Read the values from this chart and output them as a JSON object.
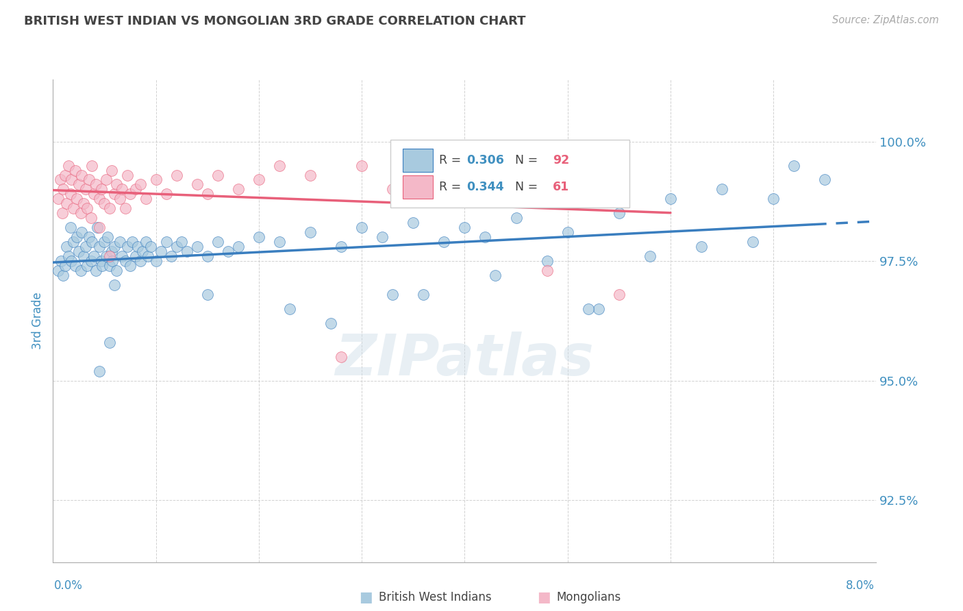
{
  "title": "BRITISH WEST INDIAN VS MONGOLIAN 3RD GRADE CORRELATION CHART",
  "source_text": "Source: ZipAtlas.com",
  "ylabel": "3rd Grade",
  "y_tick_labels": [
    "92.5%",
    "95.0%",
    "97.5%",
    "100.0%"
  ],
  "y_tick_values": [
    92.5,
    95.0,
    97.5,
    100.0
  ],
  "xlim": [
    0.0,
    8.0
  ],
  "ylim": [
    91.2,
    101.3
  ],
  "color_blue": "#a8cadf",
  "color_pink": "#f4b8c8",
  "color_blue_line": "#3a7ebf",
  "color_pink_line": "#e8607a",
  "color_blue_text": "#4090c0",
  "color_pink_text": "#e8607a",
  "color_grid": "#cccccc",
  "color_title": "#444444",
  "blue_x": [
    0.05,
    0.08,
    0.1,
    0.12,
    0.13,
    0.15,
    0.17,
    0.18,
    0.2,
    0.22,
    0.23,
    0.25,
    0.27,
    0.28,
    0.3,
    0.32,
    0.33,
    0.35,
    0.37,
    0.38,
    0.4,
    0.42,
    0.43,
    0.45,
    0.47,
    0.48,
    0.5,
    0.52,
    0.53,
    0.55,
    0.57,
    0.58,
    0.6,
    0.62,
    0.65,
    0.67,
    0.7,
    0.72,
    0.75,
    0.77,
    0.8,
    0.82,
    0.85,
    0.87,
    0.9,
    0.92,
    0.95,
    1.0,
    1.05,
    1.1,
    1.15,
    1.2,
    1.25,
    1.3,
    1.4,
    1.5,
    1.6,
    1.7,
    1.8,
    2.0,
    2.2,
    2.5,
    2.8,
    3.0,
    3.2,
    3.5,
    3.8,
    4.0,
    4.2,
    4.5,
    5.0,
    5.5,
    6.0,
    6.5,
    7.0,
    7.5,
    3.3,
    4.8,
    5.8,
    6.8,
    2.3,
    1.5,
    0.6,
    2.7,
    4.3,
    5.3,
    6.3,
    7.2,
    0.45,
    0.55,
    3.6,
    5.2
  ],
  "blue_y": [
    97.3,
    97.5,
    97.2,
    97.4,
    97.8,
    97.6,
    98.2,
    97.5,
    97.9,
    97.4,
    98.0,
    97.7,
    97.3,
    98.1,
    97.6,
    97.8,
    97.4,
    98.0,
    97.5,
    97.9,
    97.6,
    97.3,
    98.2,
    97.8,
    97.5,
    97.4,
    97.9,
    97.6,
    98.0,
    97.4,
    97.7,
    97.5,
    97.8,
    97.3,
    97.9,
    97.6,
    97.5,
    97.8,
    97.4,
    97.9,
    97.6,
    97.8,
    97.5,
    97.7,
    97.9,
    97.6,
    97.8,
    97.5,
    97.7,
    97.9,
    97.6,
    97.8,
    97.9,
    97.7,
    97.8,
    97.6,
    97.9,
    97.7,
    97.8,
    98.0,
    97.9,
    98.1,
    97.8,
    98.2,
    98.0,
    98.3,
    97.9,
    98.2,
    98.0,
    98.4,
    98.1,
    98.5,
    98.8,
    99.0,
    98.8,
    99.2,
    96.8,
    97.5,
    97.6,
    97.9,
    96.5,
    96.8,
    97.0,
    96.2,
    97.2,
    96.5,
    97.8,
    99.5,
    95.2,
    95.8,
    96.8,
    96.5
  ],
  "pink_x": [
    0.05,
    0.07,
    0.09,
    0.1,
    0.12,
    0.13,
    0.15,
    0.17,
    0.18,
    0.2,
    0.22,
    0.23,
    0.25,
    0.27,
    0.28,
    0.3,
    0.32,
    0.33,
    0.35,
    0.37,
    0.38,
    0.4,
    0.42,
    0.45,
    0.47,
    0.5,
    0.52,
    0.55,
    0.57,
    0.6,
    0.62,
    0.65,
    0.67,
    0.7,
    0.72,
    0.75,
    0.8,
    0.85,
    0.9,
    1.0,
    1.1,
    1.2,
    1.4,
    1.6,
    1.8,
    2.0,
    2.2,
    2.5,
    3.0,
    3.5,
    4.0,
    4.5,
    5.0,
    5.5,
    3.8,
    4.8,
    0.45,
    0.55,
    1.5,
    2.8,
    3.3
  ],
  "pink_y": [
    98.8,
    99.2,
    98.5,
    99.0,
    99.3,
    98.7,
    99.5,
    98.9,
    99.2,
    98.6,
    99.4,
    98.8,
    99.1,
    98.5,
    99.3,
    98.7,
    99.0,
    98.6,
    99.2,
    98.4,
    99.5,
    98.9,
    99.1,
    98.8,
    99.0,
    98.7,
    99.2,
    98.6,
    99.4,
    98.9,
    99.1,
    98.8,
    99.0,
    98.6,
    99.3,
    98.9,
    99.0,
    99.1,
    98.8,
    99.2,
    98.9,
    99.3,
    99.1,
    99.3,
    99.0,
    99.2,
    99.5,
    99.3,
    99.5,
    99.4,
    99.1,
    99.6,
    99.8,
    96.8,
    99.3,
    97.3,
    98.2,
    97.6,
    98.9,
    95.5,
    99.0
  ]
}
